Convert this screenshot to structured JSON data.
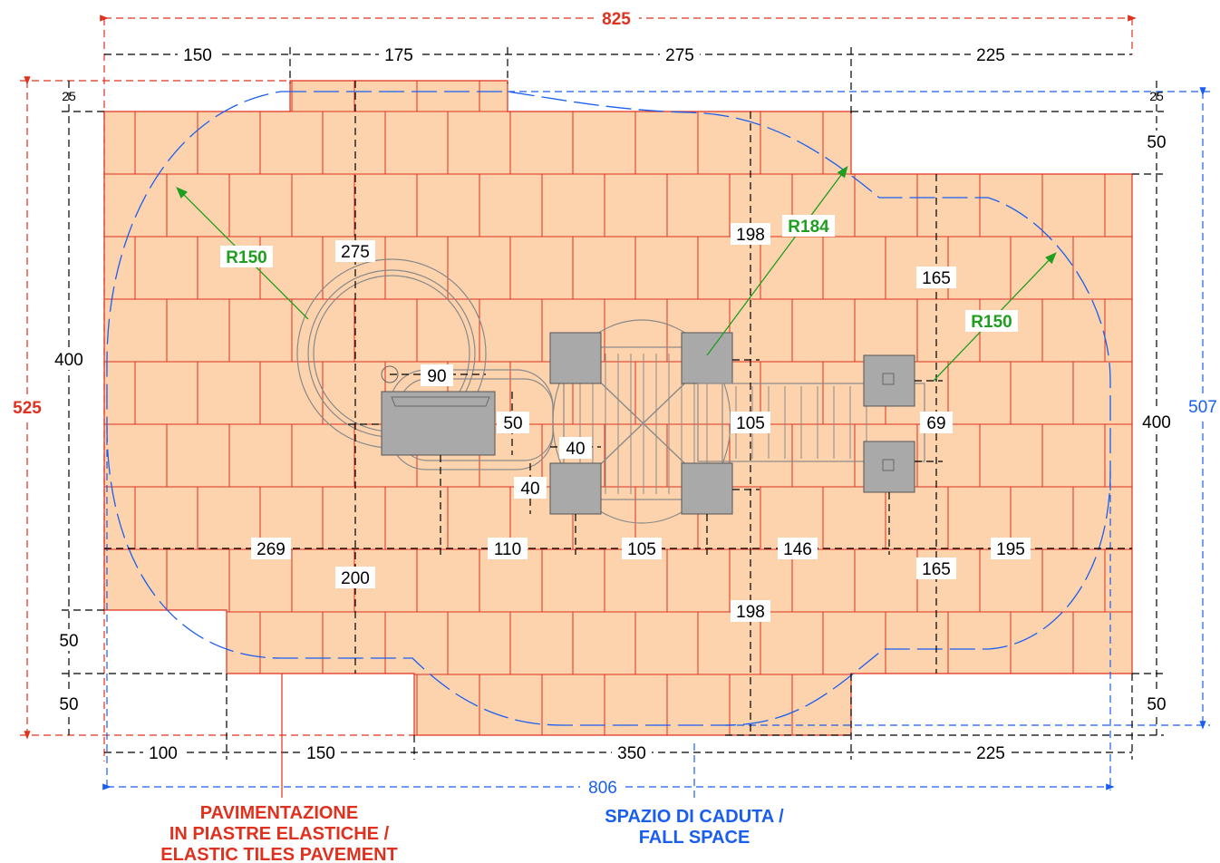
{
  "title_dims": {
    "overall_width": "825",
    "top_segments": [
      "150",
      "175",
      "275",
      "225"
    ],
    "bottom_segments": [
      "100",
      "150",
      "350",
      "225"
    ],
    "fall_width": "806",
    "overall_height": "525",
    "fall_height": "507",
    "left_heights": [
      "25",
      "400",
      "50",
      "50"
    ],
    "right_heights": [
      "25",
      "50",
      "400",
      "50"
    ]
  },
  "inner_dims": {
    "h275": "275",
    "h200": "200",
    "h198_top": "198",
    "h198_bottom": "198",
    "h165_top": "165",
    "h165_bottom": "165",
    "h105": "105",
    "h69": "69",
    "w90": "90",
    "h50": "50",
    "w40": "40",
    "h40": "40",
    "row_269": "269",
    "row_110": "110",
    "row_105": "105",
    "row_146": "146",
    "row_195": "195"
  },
  "radii": {
    "left": "R150",
    "center": "R184",
    "right": "R150"
  },
  "captions": {
    "pavement_line1": "PAVIMENTAZIONE",
    "pavement_line2": "IN PIASTRE ELASTICHE /",
    "pavement_line3": "ELASTIC TILES PAVEMENT",
    "fall_line1": "SPAZIO DI CADUTA /",
    "fall_line2": "FALL SPACE"
  },
  "colors": {
    "tile_fill": "#fdd3ae",
    "tile_grout": "#e0301e",
    "red_dims": "#e0301e",
    "blue_dims": "#1a5ef0",
    "green_radius": "#1f9e1f"
  }
}
